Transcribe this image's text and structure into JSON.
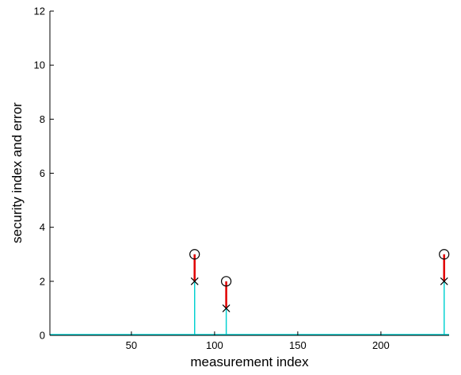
{
  "chart_data": {
    "type": "stem",
    "xlabel": "measurement index",
    "ylabel": "security index and error",
    "xlim": [
      1,
      241
    ],
    "ylim": [
      0,
      12
    ],
    "xticks": [
      50,
      100,
      150,
      200
    ],
    "yticks": [
      0,
      2,
      4,
      6,
      8,
      10,
      12
    ],
    "grid": false,
    "series": [
      {
        "marker": "circle",
        "color": "#00d0d0",
        "points": [
          {
            "x": 88,
            "y": 3
          },
          {
            "x": 107,
            "y": 2
          },
          {
            "x": 238,
            "y": 3
          }
        ]
      },
      {
        "marker": "x",
        "color": "#00d0d0",
        "points": [
          {
            "x": 88,
            "y": 2
          },
          {
            "x": 107,
            "y": 1
          },
          {
            "x": 238,
            "y": 2
          }
        ]
      }
    ],
    "error_segments": {
      "color": "#e00000",
      "segments": [
        {
          "x": 88,
          "from": 2,
          "to": 3
        },
        {
          "x": 107,
          "from": 1,
          "to": 2
        },
        {
          "x": 238,
          "from": 2,
          "to": 3
        }
      ]
    }
  }
}
